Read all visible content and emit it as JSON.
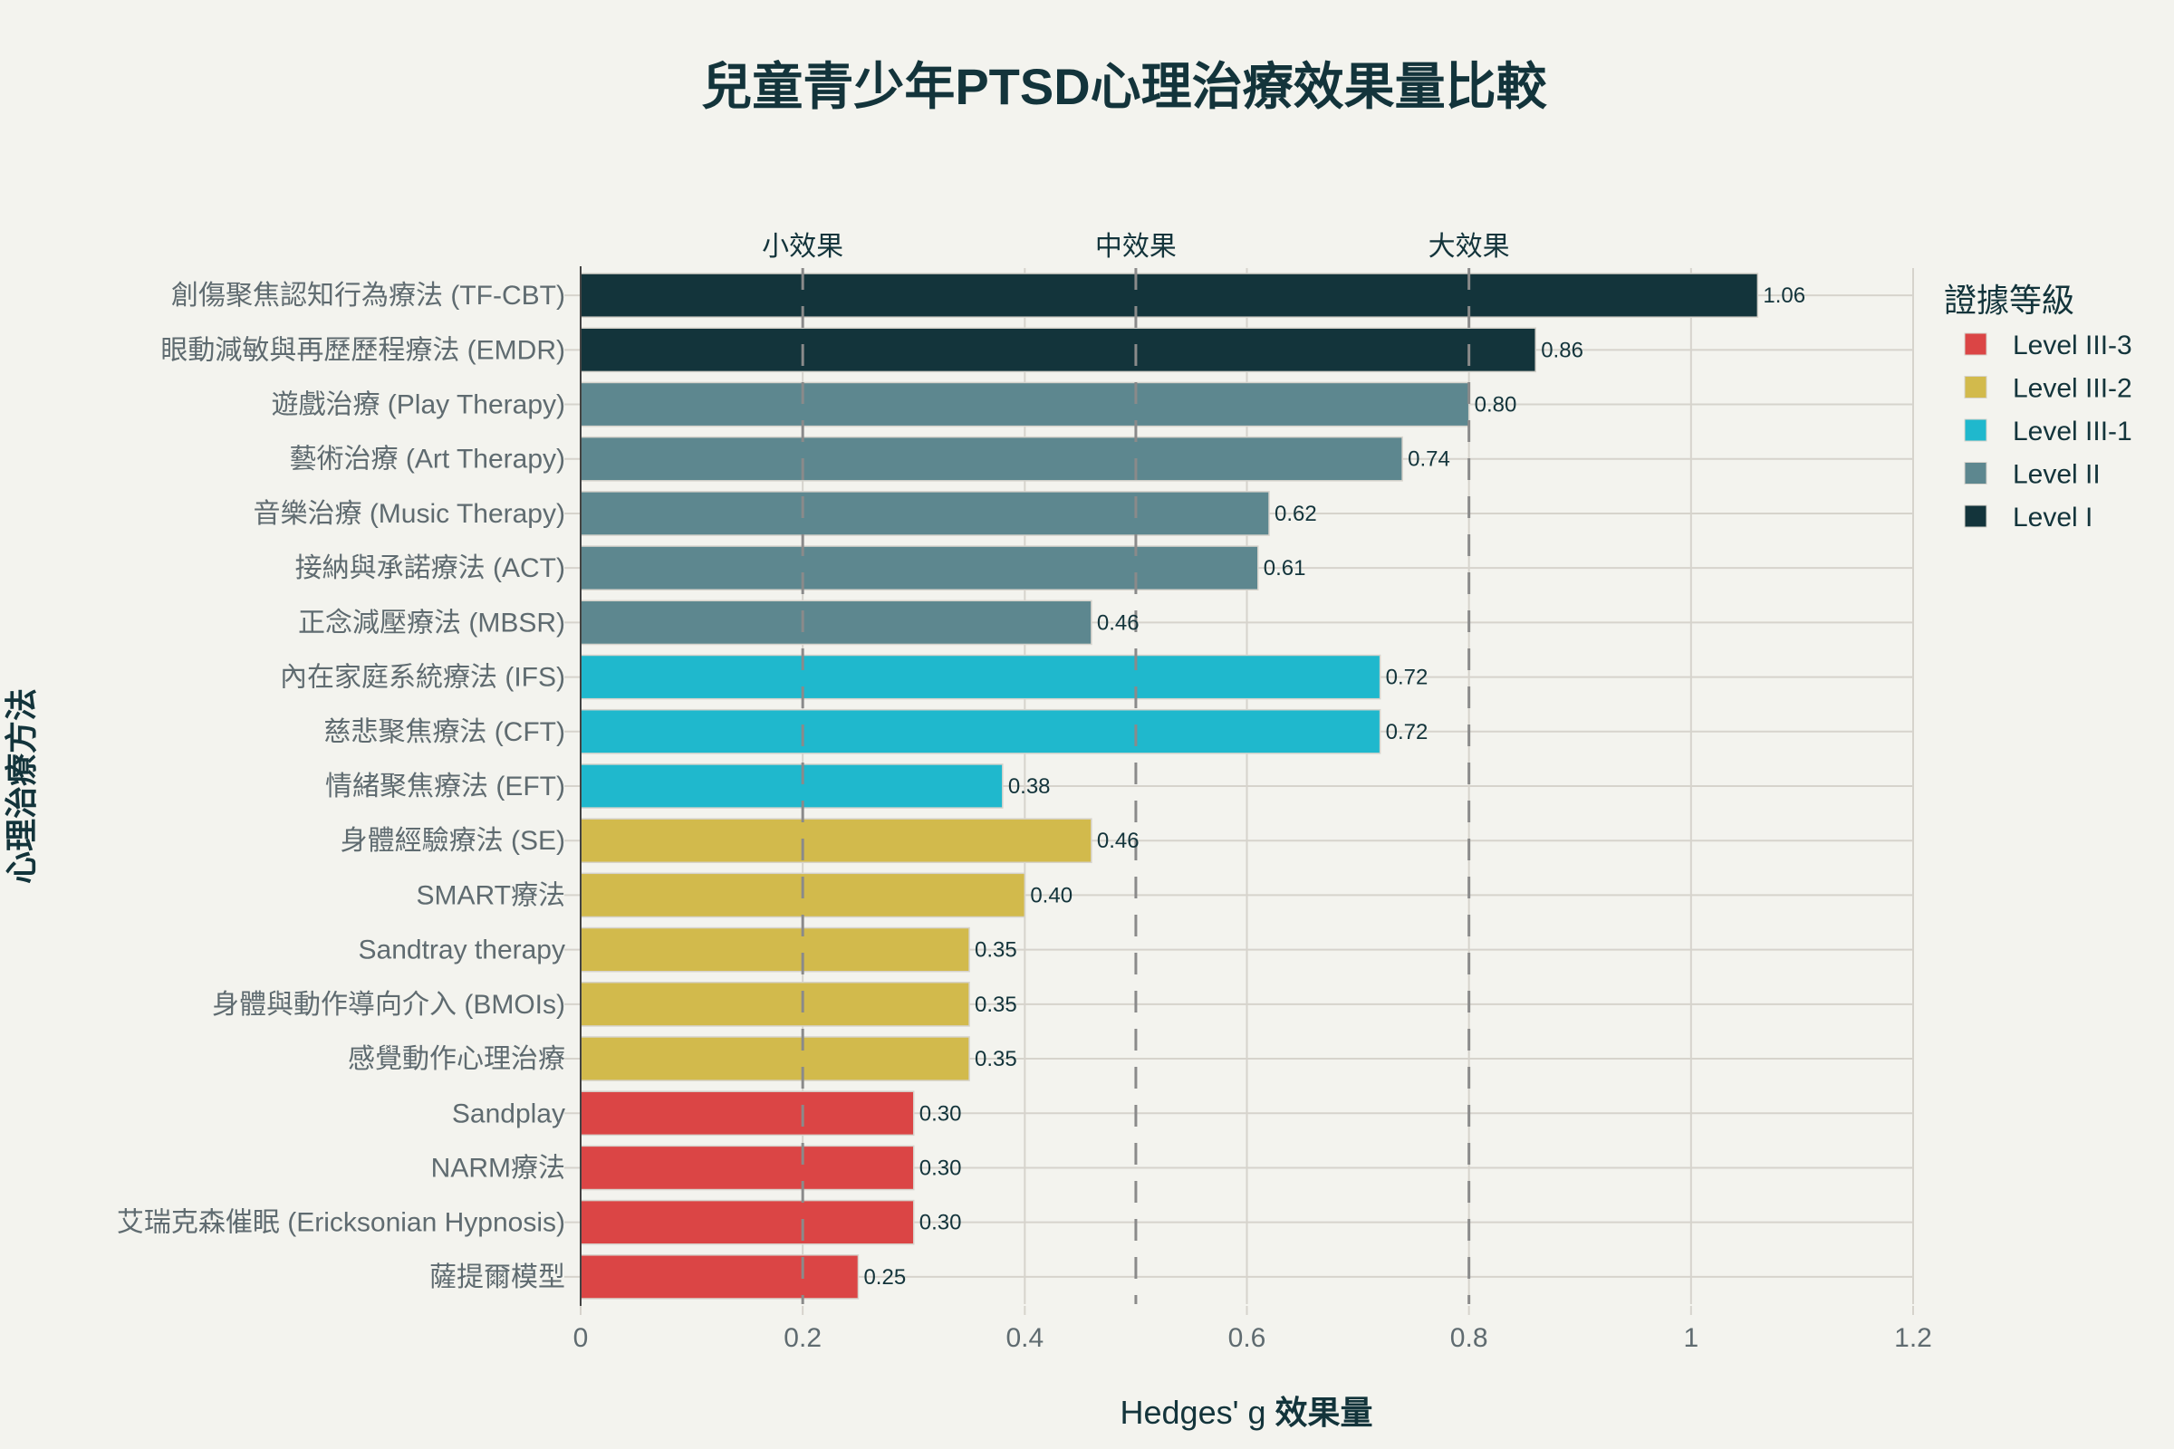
{
  "chart_data": {
    "type": "bar",
    "orientation": "horizontal",
    "title": "兒童青少年PTSD心理治療效果量比較",
    "xlabel_prefix": "Hedges' g ",
    "xlabel_bold": "效果量",
    "ylabel": "心理治療方法",
    "xlim": [
      0,
      1.2
    ],
    "xticks": [
      0,
      0.2,
      0.4,
      0.6,
      0.8,
      1,
      1.2
    ],
    "xtick_labels": [
      "0",
      "0.2",
      "0.4",
      "0.6",
      "0.8",
      "1",
      "1.2"
    ],
    "grid": true,
    "legend": {
      "title": "證據等級",
      "placement": "right",
      "entries": [
        {
          "name": "Level III-3",
          "color": "#db4545"
        },
        {
          "name": "Level III-2",
          "color": "#d2ba4c"
        },
        {
          "name": "Level III-1",
          "color": "#1fb8cd"
        },
        {
          "name": "Level II",
          "color": "#5d878f"
        },
        {
          "name": "Level I",
          "color": "#13343b"
        }
      ]
    },
    "reference_lines": [
      {
        "x": 0.2,
        "label": "小效果",
        "style": "dashed"
      },
      {
        "x": 0.5,
        "label": "中效果",
        "style": "dashed"
      },
      {
        "x": 0.8,
        "label": "大效果",
        "style": "dashed"
      }
    ],
    "categories": [
      "創傷聚焦認知行為療法 (TF-CBT)",
      "眼動減敏與再歷歷程療法 (EMDR)",
      "遊戲治療 (Play Therapy)",
      "藝術治療 (Art Therapy)",
      "音樂治療 (Music Therapy)",
      "接納與承諾療法 (ACT)",
      "正念減壓療法 (MBSR)",
      "內在家庭系統療法 (IFS)",
      "慈悲聚焦療法 (CFT)",
      "情緒聚焦療法 (EFT)",
      "身體經驗療法 (SE)",
      "SMART療法",
      "Sandtray therapy",
      "身體與動作導向介入 (BMOIs)",
      "感覺動作心理治療",
      "Sandplay",
      "NARM療法",
      "艾瑞克森催眠 (Ericksonian Hypnosis)",
      "薩提爾模型"
    ],
    "values": [
      1.06,
      0.86,
      0.8,
      0.74,
      0.62,
      0.61,
      0.46,
      0.72,
      0.72,
      0.38,
      0.46,
      0.4,
      0.35,
      0.35,
      0.35,
      0.3,
      0.3,
      0.3,
      0.25
    ],
    "value_labels": [
      "1.06",
      "0.86",
      "0.80",
      "0.74",
      "0.62",
      "0.61",
      "0.46",
      "0.72",
      "0.72",
      "0.38",
      "0.46",
      "0.40",
      "0.35",
      "0.35",
      "0.35",
      "0.30",
      "0.30",
      "0.30",
      "0.25"
    ],
    "levels": [
      "Level I",
      "Level I",
      "Level II",
      "Level II",
      "Level II",
      "Level II",
      "Level II",
      "Level III-1",
      "Level III-1",
      "Level III-1",
      "Level III-2",
      "Level III-2",
      "Level III-2",
      "Level III-2",
      "Level III-2",
      "Level III-3",
      "Level III-3",
      "Level III-3",
      "Level III-3"
    ]
  }
}
